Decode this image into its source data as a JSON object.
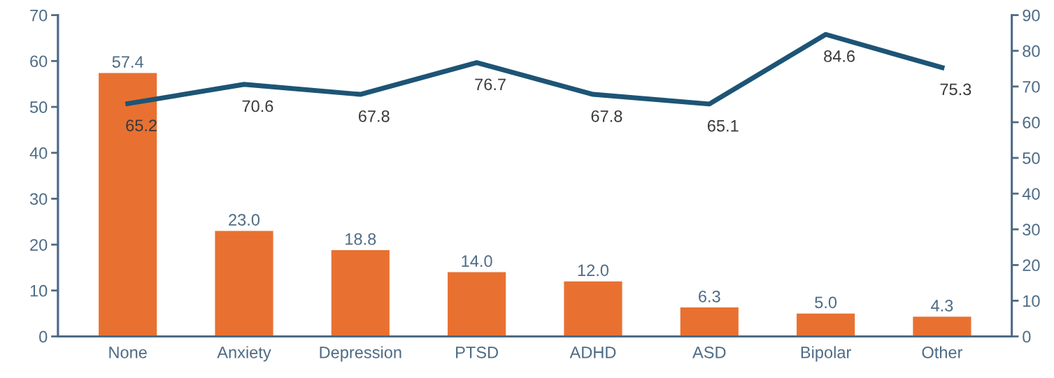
{
  "chart_data": {
    "type": "bar",
    "categories": [
      "None",
      "Anxiety",
      "Depression",
      "PTSD",
      "ADHD",
      "ASD",
      "Bipolar",
      "Other"
    ],
    "series": [
      {
        "color": "#e87131",
        "values": [
          57.4,
          23.0,
          18.8,
          14.0,
          12.0,
          6.3,
          5.0,
          4.3
        ],
        "value_labels": [
          "57.4",
          "23.0",
          "18.8",
          "14.0",
          "12.0",
          "6.3",
          "5.0",
          "4.3"
        ]
      },
      {
        "type": "line",
        "axis": "y2",
        "color": "#1d5475",
        "values": [
          65.2,
          70.6,
          67.8,
          76.7,
          67.8,
          65.1,
          84.6,
          75.3
        ],
        "value_labels": [
          "65.2",
          "70.6",
          "67.8",
          "76.7",
          "67.8",
          "65.1",
          "84.6",
          "75.3"
        ]
      }
    ],
    "ylim": [
      0,
      70
    ],
    "yticks": [
      0,
      10,
      20,
      30,
      40,
      50,
      60,
      70
    ],
    "y2lim": [
      0,
      90
    ],
    "y2ticks": [
      0,
      10,
      20,
      30,
      40,
      50,
      60,
      70,
      80,
      90
    ],
    "grid": false,
    "marker": "none",
    "line_style": "solid"
  }
}
